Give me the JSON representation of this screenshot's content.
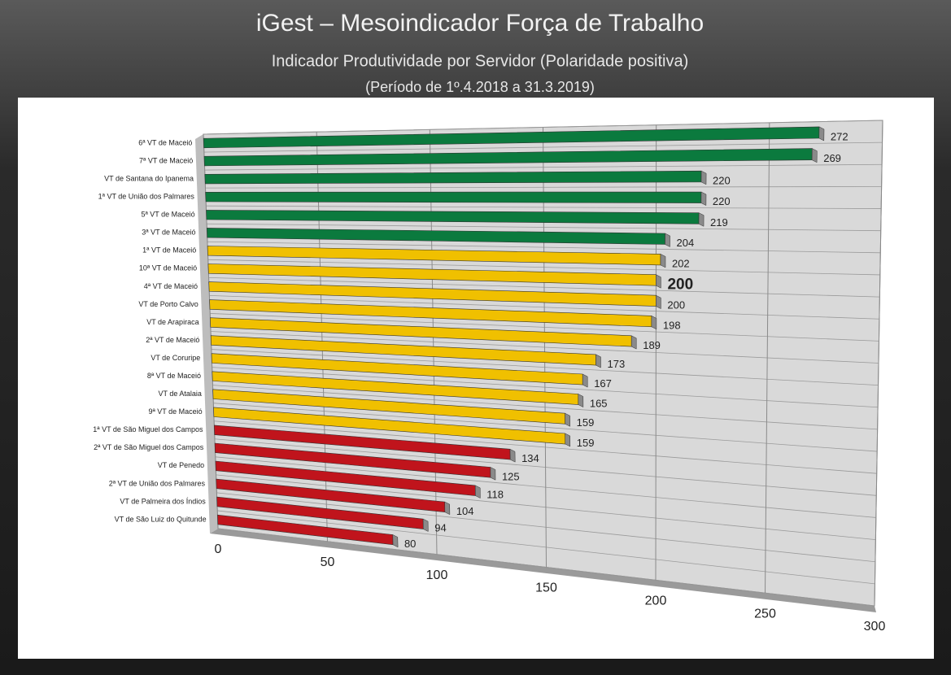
{
  "chart_data": {
    "type": "bar",
    "title": "iGest – Mesoindicador Força de Trabalho",
    "subtitle": "Indicador Produtividade por Servidor (Polaridade positiva)",
    "period": "(Período de 1º.4.2018  a  31.3.2019)",
    "categories": [
      "6ª VT de Maceió",
      "7ª VT de Maceió",
      "VT de Santana do Ipanema",
      "1ª VT de União dos Palmares",
      "5ª VT de Maceió",
      "3ª VT de Maceió",
      "1ª VT de Maceió",
      "10ª VT de Maceió",
      "4ª VT de Maceió",
      "VT de Porto Calvo",
      "VT de Arapiraca",
      "2ª VT de Maceió",
      "VT de Coruripe",
      "8ª VT de Maceió",
      "VT de Atalaia",
      "9ª VT de Maceió",
      "1ª VT de São Miguel dos Campos",
      "2ª VT de São Miguel dos Campos",
      "VT de Penedo",
      "2ª VT de União dos Palmares",
      "VT de Palmeira dos Índios",
      "VT de São Luiz do Quitunde"
    ],
    "values": [
      272,
      269,
      220,
      220,
      219,
      204,
      202,
      200,
      200,
      198,
      189,
      173,
      167,
      165,
      159,
      159,
      134,
      125,
      118,
      104,
      94,
      80
    ],
    "colors": [
      "#0b7a3e",
      "#0b7a3e",
      "#0b7a3e",
      "#0b7a3e",
      "#0b7a3e",
      "#0b7a3e",
      "#f0c000",
      "#f0c000",
      "#f0c000",
      "#f0c000",
      "#f0c000",
      "#f0c000",
      "#f0c000",
      "#f0c000",
      "#f0c000",
      "#f0c000",
      "#c0141c",
      "#c0141c",
      "#c0141c",
      "#c0141c",
      "#c0141c",
      "#c0141c"
    ],
    "xlim": [
      0,
      300
    ],
    "xticks": [
      0,
      50,
      100,
      150,
      200,
      250,
      300
    ],
    "grid": true
  }
}
